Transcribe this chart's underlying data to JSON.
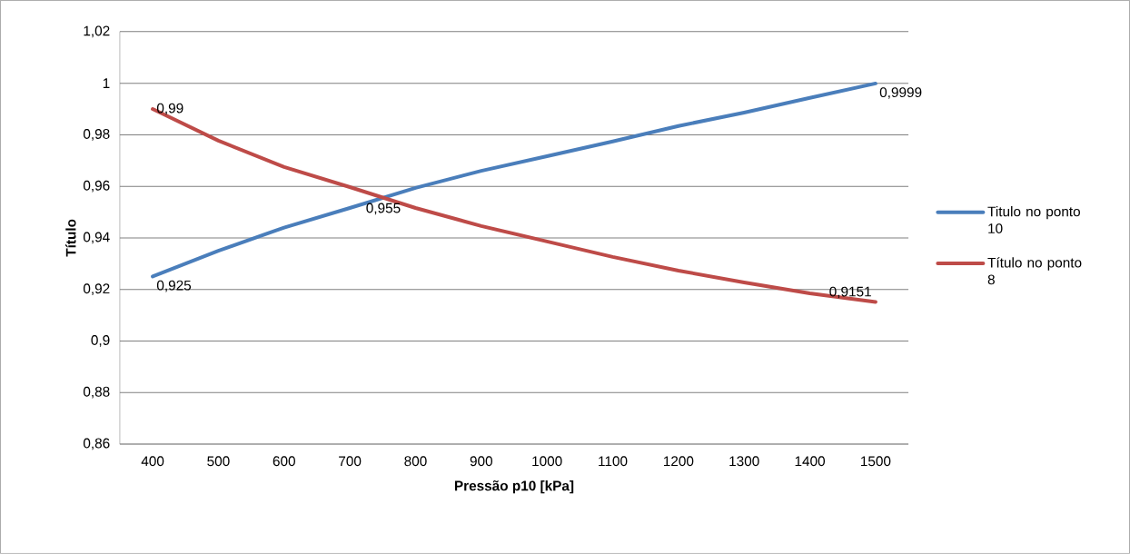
{
  "chart_data": {
    "type": "line",
    "xlabel": "Pressão p10 [kPa]",
    "ylabel": "Título",
    "categories": [
      "400",
      "500",
      "600",
      "700",
      "800",
      "900",
      "1000",
      "1100",
      "1200",
      "1300",
      "1400",
      "1500"
    ],
    "series": [
      {
        "name": "Titulo no ponto 10",
        "color": "#4a7ebb",
        "values": [
          0.925,
          0.935,
          0.944,
          0.9516,
          0.9594,
          0.966,
          0.9717,
          0.9774,
          0.9834,
          0.9886,
          0.9943,
          0.9999
        ],
        "value_labels": [
          "0,925",
          null,
          null,
          null,
          null,
          null,
          null,
          null,
          null,
          null,
          null,
          "0,9999"
        ]
      },
      {
        "name": "Título no ponto 8",
        "color": "#be4b48",
        "values": [
          0.99,
          0.9777,
          0.9675,
          0.9597,
          0.9516,
          0.9446,
          0.9386,
          0.9326,
          0.9273,
          0.9227,
          0.9185,
          0.9151
        ],
        "value_labels": [
          "0,99",
          null,
          null,
          null,
          null,
          null,
          null,
          null,
          null,
          null,
          null,
          "0,9151"
        ]
      }
    ],
    "annotations": [
      {
        "text": "0,955",
        "y": 0.955
      }
    ],
    "ylim": [
      0.86,
      1.02
    ],
    "yticks": [
      {
        "value": 0.86,
        "label": "0,86"
      },
      {
        "value": 0.88,
        "label": "0,88"
      },
      {
        "value": 0.9,
        "label": "0,9"
      },
      {
        "value": 0.92,
        "label": "0,92"
      },
      {
        "value": 0.94,
        "label": "0,94"
      },
      {
        "value": 0.96,
        "label": "0,96"
      },
      {
        "value": 0.98,
        "label": "0,98"
      },
      {
        "value": 1,
        "label": "1"
      },
      {
        "value": 1.02,
        "label": "1,02"
      }
    ],
    "grid": "y",
    "legend": "right",
    "marker": "none",
    "line_style": "solid"
  }
}
